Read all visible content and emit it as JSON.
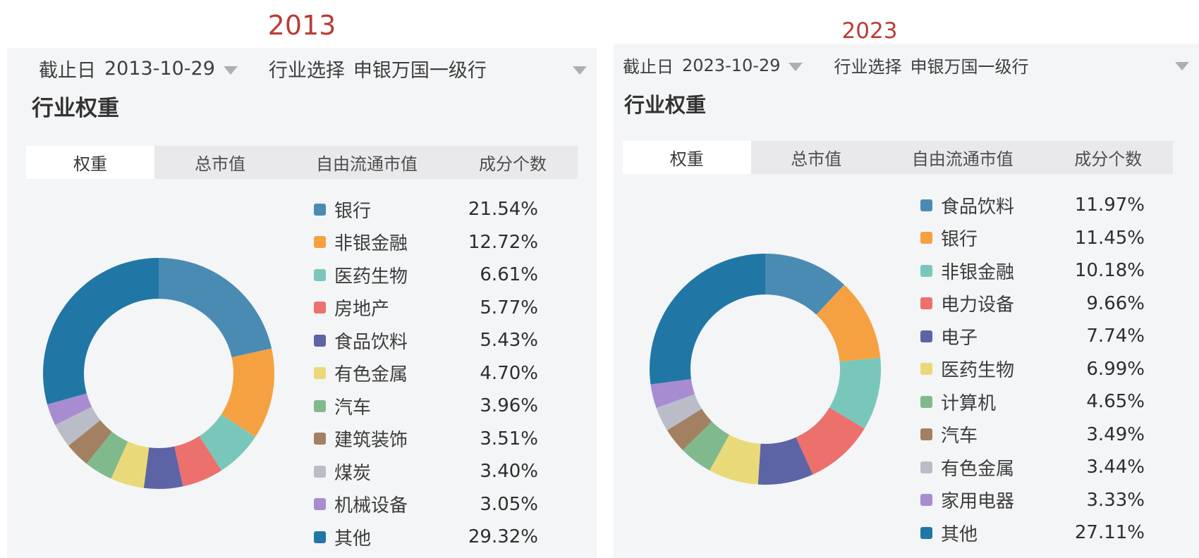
{
  "panels": [
    {
      "year_title": "2013",
      "title_color": "#b93c36",
      "cutoff_label": "截止日",
      "cutoff_date": "2013-10-29",
      "industry_select_label": "行业选择",
      "industry_select_value": "申银万国一级行",
      "section_title": "行业权重",
      "tabs": [
        {
          "label": "权重",
          "selected": true
        },
        {
          "label": "总市值",
          "selected": false
        },
        {
          "label": "自由流通市值",
          "selected": false
        },
        {
          "label": "成分个数",
          "selected": false
        }
      ]
    },
    {
      "year_title": "2023",
      "title_color": "#b93c36",
      "cutoff_label": "截止日",
      "cutoff_date": "2023-10-29",
      "industry_select_label": "行业选择",
      "industry_select_value": "申银万国一级行",
      "section_title": "行业权重",
      "tabs": [
        {
          "label": "权重",
          "selected": true
        },
        {
          "label": "总市值",
          "selected": false
        },
        {
          "label": "自由流通市值",
          "selected": false
        },
        {
          "label": "成分个数",
          "selected": false
        }
      ]
    }
  ],
  "chart_data": [
    {
      "type": "pie",
      "subtype": "donut",
      "title": "行业权重 2013-10-29",
      "legend_position": "right",
      "start_angle_deg": -90,
      "direction": "clockwise",
      "slices": [
        {
          "label": "银行",
          "value": 21.54,
          "display": "21.54%",
          "color": "#4A8BB4"
        },
        {
          "label": "非银金融",
          "value": 12.72,
          "display": "12.72%",
          "color": "#F5A142"
        },
        {
          "label": "医药生物",
          "value": 6.61,
          "display": "6.61%",
          "color": "#79C7BB"
        },
        {
          "label": "房地产",
          "value": 5.77,
          "display": "5.77%",
          "color": "#EC706C"
        },
        {
          "label": "食品饮料",
          "value": 5.43,
          "display": "5.43%",
          "color": "#5D64A5"
        },
        {
          "label": "有色金属",
          "value": 4.7,
          "display": "4.70%",
          "color": "#EAD979"
        },
        {
          "label": "汽车",
          "value": 3.96,
          "display": "3.96%",
          "color": "#80BA8C"
        },
        {
          "label": "建筑装饰",
          "value": 3.51,
          "display": "3.51%",
          "color": "#A28061"
        },
        {
          "label": "煤炭",
          "value": 3.4,
          "display": "3.40%",
          "color": "#BABDC8"
        },
        {
          "label": "机械设备",
          "value": 3.05,
          "display": "3.05%",
          "color": "#A88CD1"
        },
        {
          "label": "其他",
          "value": 29.32,
          "display": "29.32%",
          "color": "#2077A6"
        }
      ]
    },
    {
      "type": "pie",
      "subtype": "donut",
      "title": "行业权重 2023-10-29",
      "legend_position": "right",
      "start_angle_deg": -90,
      "direction": "clockwise",
      "slices": [
        {
          "label": "食品饮料",
          "value": 11.97,
          "display": "11.97%",
          "color": "#4A8BB4"
        },
        {
          "label": "银行",
          "value": 11.45,
          "display": "11.45%",
          "color": "#F5A142"
        },
        {
          "label": "非银金融",
          "value": 10.18,
          "display": "10.18%",
          "color": "#79C7BB"
        },
        {
          "label": "电力设备",
          "value": 9.66,
          "display": "9.66%",
          "color": "#EC706C"
        },
        {
          "label": "电子",
          "value": 7.74,
          "display": "7.74%",
          "color": "#5D64A5"
        },
        {
          "label": "医药生物",
          "value": 6.99,
          "display": "6.99%",
          "color": "#EAD979"
        },
        {
          "label": "计算机",
          "value": 4.65,
          "display": "4.65%",
          "color": "#80BA8C"
        },
        {
          "label": "汽车",
          "value": 3.49,
          "display": "3.49%",
          "color": "#A28061"
        },
        {
          "label": "有色金属",
          "value": 3.44,
          "display": "3.44%",
          "color": "#BABDC8"
        },
        {
          "label": "家用电器",
          "value": 3.33,
          "display": "3.33%",
          "color": "#A88CD1"
        },
        {
          "label": "其他",
          "value": 27.11,
          "display": "27.11%",
          "color": "#2077A6"
        }
      ]
    }
  ]
}
